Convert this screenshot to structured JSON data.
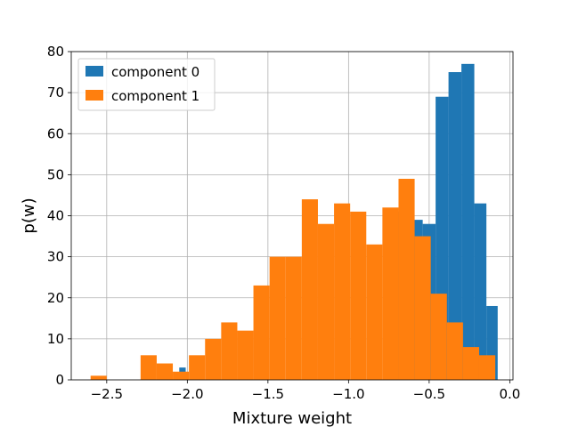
{
  "chart_data": {
    "type": "histogram",
    "xlabel": "Mixture weight",
    "ylabel": "p(w)",
    "xlim": [
      -2.72,
      0.02
    ],
    "ylim": [
      0,
      80
    ],
    "x_ticks": [
      -2.5,
      -2.0,
      -1.5,
      -1.0,
      -0.5,
      0.0
    ],
    "x_tick_labels": [
      "−2.5",
      "−2.0",
      "−1.5",
      "−1.0",
      "−0.5",
      "0.0"
    ],
    "y_ticks": [
      0,
      10,
      20,
      30,
      40,
      50,
      60,
      70,
      80
    ],
    "y_tick_labels": [
      "0",
      "10",
      "20",
      "30",
      "40",
      "50",
      "60",
      "70",
      "80"
    ],
    "grid": true,
    "legend_position": "top-left",
    "series": [
      {
        "name": "component 0",
        "color": "#1f77b4",
        "bins": [
          {
            "x0": -2.05,
            "x1": -2.01,
            "value": 3
          },
          {
            "x0": -0.7,
            "x1": -0.62,
            "value": 41
          },
          {
            "x0": -0.62,
            "x1": -0.54,
            "value": 39
          },
          {
            "x0": -0.54,
            "x1": -0.46,
            "value": 38
          },
          {
            "x0": -0.46,
            "x1": -0.38,
            "value": 69
          },
          {
            "x0": -0.38,
            "x1": -0.3,
            "value": 75
          },
          {
            "x0": -0.3,
            "x1": -0.22,
            "value": 77
          },
          {
            "x0": -0.22,
            "x1": -0.145,
            "value": 43
          },
          {
            "x0": -0.145,
            "x1": -0.075,
            "value": 18
          }
        ]
      },
      {
        "name": "component 1",
        "color": "#ff7f0e",
        "bins": [
          {
            "x0": -2.6,
            "x1": -2.5,
            "value": 1
          },
          {
            "x0": -2.29,
            "x1": -2.19,
            "value": 6
          },
          {
            "x0": -2.19,
            "x1": -2.09,
            "value": 4
          },
          {
            "x0": -2.09,
            "x1": -1.99,
            "value": 2
          },
          {
            "x0": -1.99,
            "x1": -1.89,
            "value": 6
          },
          {
            "x0": -1.89,
            "x1": -1.79,
            "value": 10
          },
          {
            "x0": -1.79,
            "x1": -1.69,
            "value": 14
          },
          {
            "x0": -1.69,
            "x1": -1.59,
            "value": 12
          },
          {
            "x0": -1.59,
            "x1": -1.49,
            "value": 23
          },
          {
            "x0": -1.49,
            "x1": -1.39,
            "value": 30
          },
          {
            "x0": -1.39,
            "x1": -1.29,
            "value": 30
          },
          {
            "x0": -1.29,
            "x1": -1.19,
            "value": 44
          },
          {
            "x0": -1.19,
            "x1": -1.09,
            "value": 38
          },
          {
            "x0": -1.09,
            "x1": -0.99,
            "value": 43
          },
          {
            "x0": -0.99,
            "x1": -0.89,
            "value": 41
          },
          {
            "x0": -0.89,
            "x1": -0.79,
            "value": 33
          },
          {
            "x0": -0.79,
            "x1": -0.69,
            "value": 42
          },
          {
            "x0": -0.69,
            "x1": -0.59,
            "value": 49
          },
          {
            "x0": -0.59,
            "x1": -0.49,
            "value": 35
          },
          {
            "x0": -0.49,
            "x1": -0.39,
            "value": 21
          },
          {
            "x0": -0.39,
            "x1": -0.29,
            "value": 14
          },
          {
            "x0": -0.29,
            "x1": -0.19,
            "value": 8
          },
          {
            "x0": -0.19,
            "x1": -0.09,
            "value": 6
          }
        ]
      }
    ]
  }
}
